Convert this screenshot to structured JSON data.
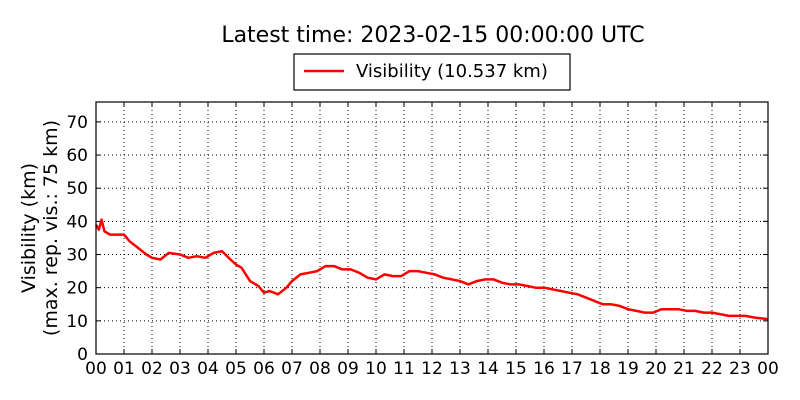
{
  "chart_data": {
    "type": "line",
    "title": "Latest time: 2023-02-15 00:00:00 UTC",
    "ylabel_lines": [
      "Visibility (km)",
      "(max. rep. vis.: 75 km)"
    ],
    "xlabel": "",
    "legend": {
      "placement": "top-center",
      "entries": [
        "Visibility (10.537 km)"
      ]
    },
    "grid": true,
    "xlim": [
      0,
      24
    ],
    "ylim": [
      0,
      76
    ],
    "x_ticks": [
      "00",
      "01",
      "02",
      "03",
      "04",
      "05",
      "06",
      "07",
      "08",
      "09",
      "10",
      "11",
      "12",
      "13",
      "14",
      "15",
      "16",
      "17",
      "18",
      "19",
      "20",
      "21",
      "22",
      "23",
      "00"
    ],
    "y_ticks": [
      "0",
      "10",
      "20",
      "30",
      "40",
      "50",
      "60",
      "70"
    ],
    "series": [
      {
        "name": "Visibility (10.537 km)",
        "color": "#ff0000",
        "x": [
          0,
          0.1,
          0.2,
          0.3,
          0.5,
          0.8,
          1.0,
          1.2,
          1.5,
          1.8,
          2.0,
          2.3,
          2.6,
          3.0,
          3.3,
          3.6,
          3.9,
          4.2,
          4.5,
          4.8,
          5.0,
          5.2,
          5.5,
          5.8,
          6.0,
          6.2,
          6.5,
          6.8,
          7.0,
          7.3,
          7.6,
          7.9,
          8.2,
          8.5,
          8.8,
          9.1,
          9.4,
          9.7,
          10.0,
          10.3,
          10.6,
          10.9,
          11.2,
          11.5,
          11.8,
          12.1,
          12.4,
          12.7,
          13.0,
          13.3,
          13.6,
          13.9,
          14.2,
          14.5,
          14.8,
          15.1,
          15.4,
          15.7,
          16.0,
          16.3,
          16.6,
          16.9,
          17.2,
          17.5,
          17.8,
          18.1,
          18.4,
          18.7,
          19.0,
          19.3,
          19.6,
          19.9,
          20.2,
          20.5,
          20.8,
          21.1,
          21.4,
          21.7,
          22.0,
          22.3,
          22.6,
          22.9,
          23.2,
          23.5,
          23.8,
          24.0
        ],
        "y": [
          39,
          37.5,
          40.5,
          37,
          36,
          36,
          36,
          34,
          32,
          30,
          29,
          28.5,
          30.5,
          30,
          29,
          29.5,
          29,
          30.5,
          31,
          28.5,
          27,
          26,
          22,
          20.5,
          18.5,
          19,
          18,
          20,
          22,
          24,
          24.5,
          25,
          26.5,
          26.5,
          25.5,
          25.5,
          24.5,
          23,
          22.5,
          24,
          23.5,
          23.5,
          25,
          25,
          24.5,
          24,
          23,
          22.5,
          22,
          21,
          22,
          22.5,
          22.5,
          21.5,
          21,
          21,
          20.5,
          20,
          20,
          19.5,
          19,
          18.5,
          18,
          17,
          16,
          15,
          15,
          14.5,
          13.5,
          13,
          12.5,
          12.5,
          13.5,
          13.5,
          13.5,
          13,
          13,
          12.5,
          12.5,
          12,
          11.5,
          11.5,
          11.5,
          11,
          10.7,
          10.537
        ]
      }
    ]
  }
}
